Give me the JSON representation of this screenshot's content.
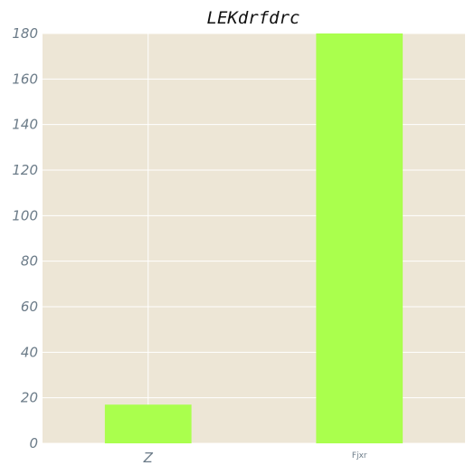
{
  "chart_data": {
    "type": "bar",
    "title": "LEKdrfdrc",
    "xlabel": "",
    "ylabel": "",
    "categories": [
      "Z",
      "Fjxr"
    ],
    "values": [
      17,
      180
    ],
    "ylim": [
      0,
      180
    ],
    "yticks": [
      0,
      20,
      40,
      60,
      80,
      100,
      120,
      140,
      160,
      180
    ],
    "grid": true,
    "colors": {
      "bar": "#aaff4d",
      "background": "#ede6d6",
      "grid": "#ffffff",
      "tick_text": "#6b7b88",
      "title": "#111111"
    }
  }
}
